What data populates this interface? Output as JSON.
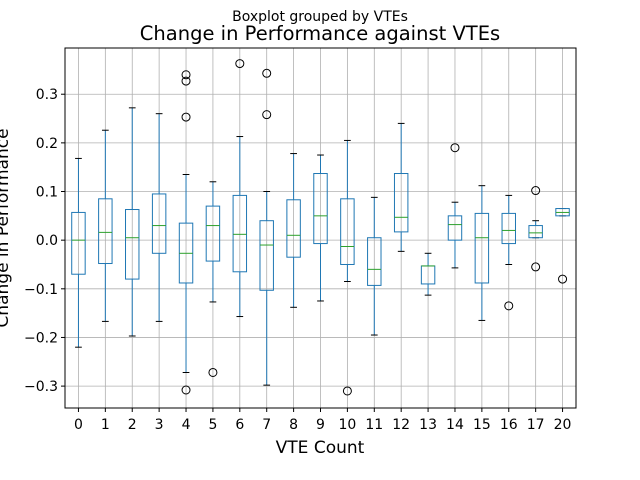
{
  "chart_data": {
    "type": "boxplot",
    "suptitle": "Boxplot grouped by VTEs",
    "title": "Change in Performance against VTEs",
    "xlabel": "VTE Count",
    "ylabel": "Change in Performance",
    "ylim": [
      -0.345,
      0.395
    ],
    "yticks": [
      -0.3,
      -0.2,
      -0.1,
      0.0,
      0.1,
      0.2,
      0.3
    ],
    "ytick_labels": [
      "−0.3",
      "−0.2",
      "−0.1",
      "0.0",
      "0.1",
      "0.2",
      "0.3"
    ],
    "grid": true,
    "colors": {
      "box": "#1f77b4",
      "median": "#2ca02c",
      "whisker": "#000000",
      "grid": "#b0b0b0"
    },
    "boxes": [
      {
        "label": "0",
        "whislo": -0.22,
        "q1": -0.07,
        "med": 0.0,
        "q3": 0.057,
        "whishi": 0.168,
        "fliers": []
      },
      {
        "label": "1",
        "whislo": -0.167,
        "q1": -0.048,
        "med": 0.016,
        "q3": 0.085,
        "whishi": 0.226,
        "fliers": []
      },
      {
        "label": "2",
        "whislo": -0.197,
        "q1": -0.08,
        "med": 0.005,
        "q3": 0.063,
        "whishi": 0.272,
        "fliers": []
      },
      {
        "label": "3",
        "whislo": -0.167,
        "q1": -0.027,
        "med": 0.03,
        "q3": 0.095,
        "whishi": 0.26,
        "fliers": []
      },
      {
        "label": "4",
        "whislo": -0.272,
        "q1": -0.088,
        "med": -0.027,
        "q3": 0.035,
        "whishi": 0.135,
        "fliers": [
          0.34,
          0.327,
          0.253,
          -0.308
        ]
      },
      {
        "label": "5",
        "whislo": -0.127,
        "q1": -0.043,
        "med": 0.03,
        "q3": 0.07,
        "whishi": 0.12,
        "fliers": [
          -0.272
        ]
      },
      {
        "label": "6",
        "whislo": -0.157,
        "q1": -0.065,
        "med": 0.012,
        "q3": 0.092,
        "whishi": 0.213,
        "fliers": [
          0.363
        ]
      },
      {
        "label": "7",
        "whislo": -0.298,
        "q1": -0.103,
        "med": -0.01,
        "q3": 0.04,
        "whishi": 0.1,
        "fliers": [
          0.343,
          0.258
        ]
      },
      {
        "label": "8",
        "whislo": -0.138,
        "q1": -0.035,
        "med": 0.01,
        "q3": 0.083,
        "whishi": 0.178,
        "fliers": []
      },
      {
        "label": "9",
        "whislo": -0.125,
        "q1": -0.007,
        "med": 0.05,
        "q3": 0.137,
        "whishi": 0.175,
        "fliers": []
      },
      {
        "label": "10",
        "whislo": -0.085,
        "q1": -0.05,
        "med": -0.013,
        "q3": 0.085,
        "whishi": 0.205,
        "fliers": [
          -0.31
        ]
      },
      {
        "label": "11",
        "whislo": -0.195,
        "q1": -0.093,
        "med": -0.06,
        "q3": 0.005,
        "whishi": 0.088,
        "fliers": []
      },
      {
        "label": "12",
        "whislo": -0.023,
        "q1": 0.017,
        "med": 0.047,
        "q3": 0.137,
        "whishi": 0.24,
        "fliers": []
      },
      {
        "label": "13",
        "whislo": -0.113,
        "q1": -0.09,
        "med": -0.053,
        "q3": -0.053,
        "whishi": -0.027,
        "fliers": []
      },
      {
        "label": "14",
        "whislo": -0.057,
        "q1": 0.0,
        "med": 0.032,
        "q3": 0.05,
        "whishi": 0.078,
        "fliers": [
          0.19
        ]
      },
      {
        "label": "15",
        "whislo": -0.165,
        "q1": -0.088,
        "med": 0.005,
        "q3": 0.055,
        "whishi": 0.112,
        "fliers": []
      },
      {
        "label": "16",
        "whislo": -0.05,
        "q1": -0.007,
        "med": 0.02,
        "q3": 0.055,
        "whishi": 0.092,
        "fliers": [
          -0.135
        ]
      },
      {
        "label": "17",
        "whislo": 0.005,
        "q1": 0.005,
        "med": 0.015,
        "q3": 0.03,
        "whishi": 0.04,
        "fliers": [
          0.102,
          -0.055
        ]
      },
      {
        "label": "20",
        "whislo": 0.05,
        "q1": 0.05,
        "med": 0.057,
        "q3": 0.065,
        "whishi": 0.065,
        "fliers": [
          -0.08
        ]
      }
    ]
  }
}
